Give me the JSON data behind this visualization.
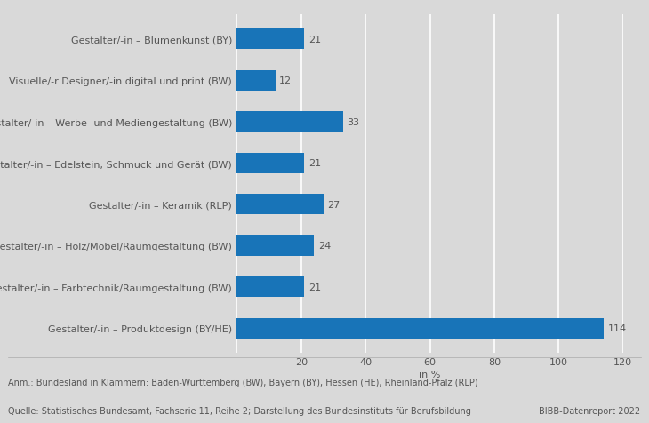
{
  "categories": [
    "Gestalter/-in – Produktdesign (BY/HE)",
    "Gestalter/-in – Farbtechnik/Raumgestaltung (BW)",
    "Gestalter/-in – Holz/Möbel/Raumgestaltung (BW)",
    "Gestalter/-in – Keramik (RLP)",
    "Gestalter/-in – Edelstein, Schmuck und Gerät (BW)",
    "Gestalter/-in – Werbe- und Mediengestaltung (BW)",
    "Visuelle/-r Designer/-in digital und print (BW)",
    "Gestalter/-in – Blumenkunst (BY)"
  ],
  "values": [
    114,
    21,
    24,
    27,
    21,
    33,
    12,
    21
  ],
  "bar_color": "#1874b8",
  "background_color": "#d9d9d9",
  "plot_bg_color": "#d9d9d9",
  "xlim": [
    0,
    120
  ],
  "xticks": [
    0,
    20,
    40,
    60,
    80,
    100,
    120
  ],
  "xtick_labels": [
    "-",
    "20",
    "40",
    "60",
    "80",
    "100",
    "120"
  ],
  "xlabel": "in %",
  "grid_color": "#ffffff",
  "label_fontsize": 8.0,
  "tick_fontsize": 8.0,
  "annotation_fontsize": 8.0,
  "footnote1": "Anm.: Bundesland in Klammern: Baden-Württemberg (BW), Bayern (BY), Hessen (HE), Rheinland-Pfalz (RLP)",
  "footnote2": "Quelle: Statistisches Bundesamt, Fachserie 11, Reihe 2; Darstellung des Bundesinstituts für Berufsbildung",
  "footnote_right": "BIBB-Datenreport 2022",
  "bar_height": 0.5
}
